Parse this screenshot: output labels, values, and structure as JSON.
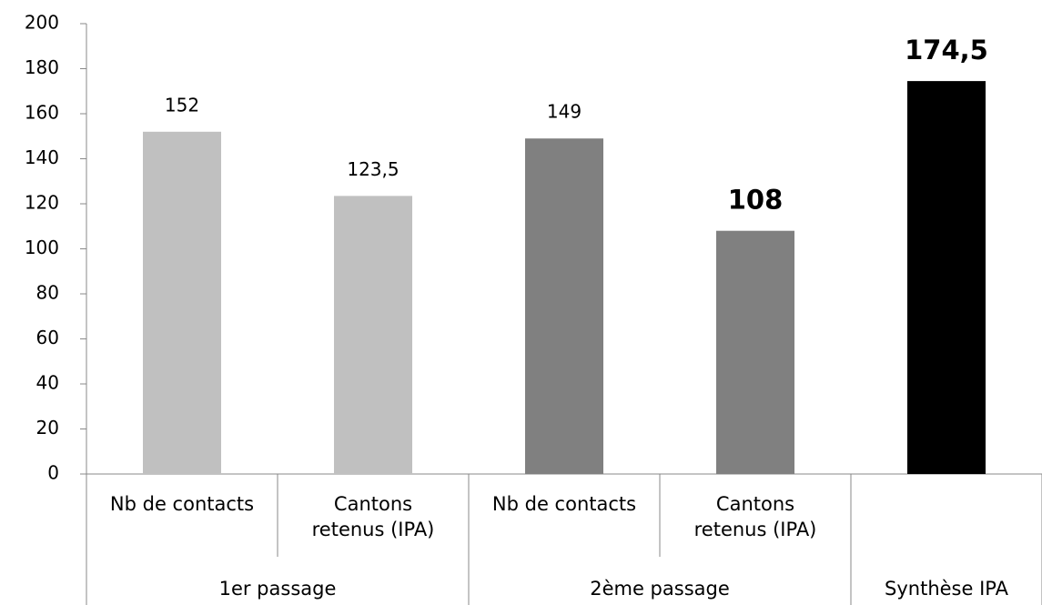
{
  "chart_data": {
    "type": "bar",
    "categories": [
      "Nb de contacts",
      "Cantons retenus (IPA)",
      "Nb de contacts",
      "Cantons retenus (IPA)",
      null
    ],
    "groups": [
      {
        "label": "1er passage",
        "size": 2
      },
      {
        "label": "2ème passage",
        "size": 2
      },
      {
        "label": "Synthèse IPA",
        "size": 1
      }
    ],
    "values": [
      152,
      123.5,
      149,
      108,
      174.5
    ],
    "value_labels": [
      "152",
      "123,5",
      "149",
      "108",
      "174,5"
    ],
    "value_label_bold": [
      false,
      false,
      false,
      true,
      true
    ],
    "colors": [
      "#c0c0c0",
      "#c0c0c0",
      "#808080",
      "#808080",
      "#000000"
    ],
    "ylim": [
      0,
      200
    ],
    "yticks": [
      0,
      20,
      40,
      60,
      80,
      100,
      120,
      140,
      160,
      180,
      200
    ],
    "grid": false
  }
}
